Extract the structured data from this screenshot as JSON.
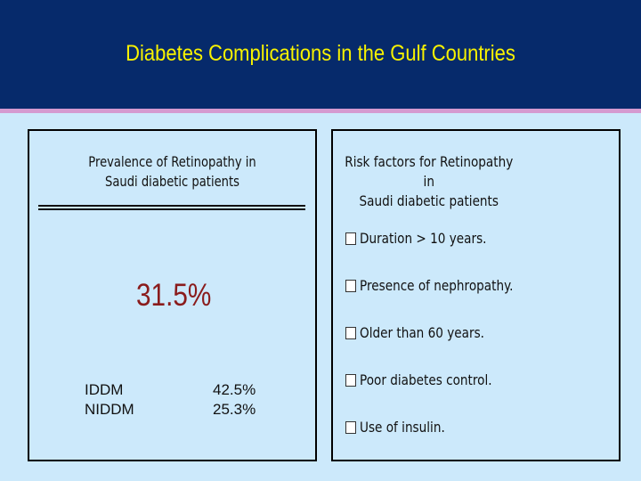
{
  "slide": {
    "title": "Diabetes Complications in the Gulf Countries",
    "colors": {
      "header_bg": "#062a6b",
      "header_accent": "#d59ad0",
      "title_text": "#f8f200",
      "slide_bg": "#cce9fb",
      "highlight_value": "#8a1c1c"
    }
  },
  "left_panel": {
    "heading_line1": "Prevalence of Retinopathy in",
    "heading_line2": "Saudi diabetic patients",
    "overall_prevalence": "31.5%",
    "types": [
      {
        "label": "IDDM",
        "value": "42.5%"
      },
      {
        "label": "NIDDM",
        "value": "25.3%"
      }
    ]
  },
  "right_panel": {
    "heading_line1": "Risk factors for Retinopathy in",
    "heading_line2": "Saudi diabetic patients",
    "bullet_icon": "square-bullet-icon",
    "risk_factors": [
      "Duration > 10 years.",
      "Presence of nephropathy.",
      "Older than 60 years.",
      "Poor diabetes control.",
      "Use of insulin."
    ]
  }
}
